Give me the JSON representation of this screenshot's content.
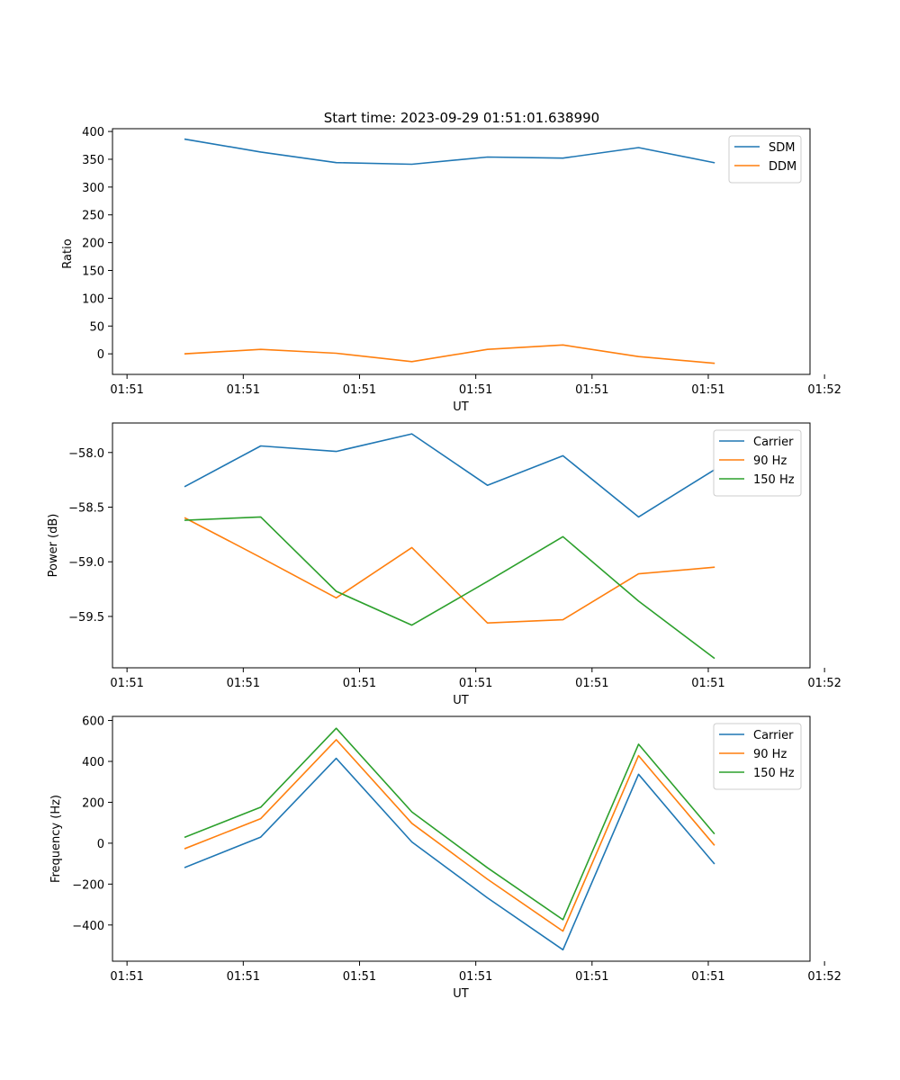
{
  "figure_title": "Start time: 2023-09-29 01:51:01.638990",
  "colors": {
    "blue": "#1f77b4",
    "orange": "#ff7f0e",
    "green": "#2ca02c",
    "axis": "#000000",
    "legend_border": "#cccccc"
  },
  "chart_data": [
    {
      "type": "line",
      "title": "Start time: 2023-09-29 01:51:01.638990",
      "xlabel": "UT",
      "ylabel": "Ratio",
      "x": [
        0.5,
        1.15,
        1.8,
        2.45,
        3.1,
        3.75,
        4.4,
        5.05
      ],
      "xlim": [
        -0.125,
        5.875
      ],
      "xticks": [
        0,
        1,
        2,
        3,
        4,
        5,
        6
      ],
      "xtick_labels": [
        "01:51",
        "01:51",
        "01:51",
        "01:51",
        "01:51",
        "01:51",
        "01:52"
      ],
      "ylim": [
        -37,
        405
      ],
      "yticks": [
        0,
        50,
        100,
        150,
        200,
        250,
        300,
        350,
        400
      ],
      "ytick_labels": [
        "0",
        "50",
        "100",
        "150",
        "200",
        "250",
        "300",
        "350",
        "400"
      ],
      "legend_position": "top-right",
      "series": [
        {
          "name": "SDM",
          "color": "#1f77b4",
          "values": [
            386,
            363,
            344,
            341,
            354,
            352,
            371,
            344
          ]
        },
        {
          "name": "DDM",
          "color": "#ff7f0e",
          "values": [
            0,
            8,
            1,
            -14,
            8,
            16,
            -5,
            -17
          ]
        }
      ]
    },
    {
      "type": "line",
      "xlabel": "UT",
      "ylabel": "Power (dB)",
      "x": [
        0.5,
        1.15,
        1.8,
        2.45,
        3.1,
        3.75,
        4.4,
        5.05
      ],
      "xlim": [
        -0.125,
        5.875
      ],
      "xticks": [
        0,
        1,
        2,
        3,
        4,
        5,
        6
      ],
      "xtick_labels": [
        "01:51",
        "01:51",
        "01:51",
        "01:51",
        "01:51",
        "01:51",
        "01:52"
      ],
      "ylim": [
        -59.97,
        -57.73
      ],
      "yticks": [
        -59.5,
        -59.0,
        -58.5,
        -58.0
      ],
      "ytick_labels": [
        "−59.5",
        "−59.0",
        "−58.5",
        "−58.0"
      ],
      "legend_position": "top-right",
      "series": [
        {
          "name": "Carrier",
          "color": "#1f77b4",
          "values": [
            -58.31,
            -57.94,
            -57.99,
            -57.83,
            -58.3,
            -58.03,
            -58.59,
            -58.16
          ]
        },
        {
          "name": "90 Hz",
          "color": "#ff7f0e",
          "values": [
            -58.6,
            -58.96,
            -59.33,
            -58.87,
            -59.56,
            -59.53,
            -59.11,
            -59.05
          ]
        },
        {
          "name": "150 Hz",
          "color": "#2ca02c",
          "values": [
            -58.62,
            -58.59,
            -59.27,
            -59.58,
            -59.18,
            -58.77,
            -59.36,
            -59.88
          ]
        }
      ]
    },
    {
      "type": "line",
      "xlabel": "UT",
      "ylabel": "Frequency (Hz)",
      "x": [
        0.5,
        1.15,
        1.8,
        2.45,
        3.1,
        3.75,
        4.4,
        5.05
      ],
      "xlim": [
        -0.125,
        5.875
      ],
      "xticks": [
        0,
        1,
        2,
        3,
        4,
        5,
        6
      ],
      "xtick_labels": [
        "01:51",
        "01:51",
        "01:51",
        "01:51",
        "01:51",
        "01:51",
        "01:52"
      ],
      "ylim": [
        -577,
        620
      ],
      "yticks": [
        -400,
        -200,
        0,
        200,
        400,
        600
      ],
      "ytick_labels": [
        "−400",
        "−200",
        "0",
        "200",
        "400",
        "600"
      ],
      "legend_position": "top-right",
      "series": [
        {
          "name": "Carrier",
          "color": "#1f77b4",
          "values": [
            -118,
            30,
            415,
            6,
            -267,
            -521,
            337,
            -99
          ]
        },
        {
          "name": "90 Hz",
          "color": "#ff7f0e",
          "values": [
            -26,
            120,
            506,
            97,
            -176,
            -430,
            428,
            -8
          ]
        },
        {
          "name": "150 Hz",
          "color": "#2ca02c",
          "values": [
            30,
            176,
            562,
            153,
            -120,
            -374,
            484,
            48
          ]
        }
      ]
    }
  ]
}
